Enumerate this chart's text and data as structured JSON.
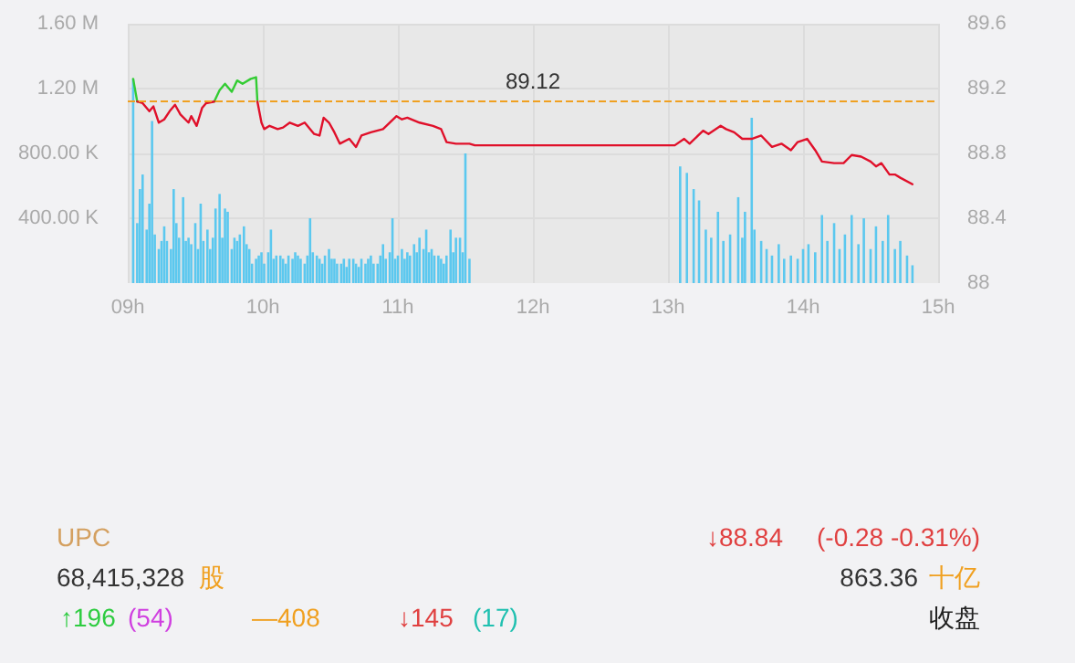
{
  "chart_data": {
    "type": "bar",
    "grid": true,
    "xlim": [
      9,
      15
    ],
    "xticks": [
      {
        "value": 9,
        "label": "09h"
      },
      {
        "value": 10,
        "label": "10h"
      },
      {
        "value": 11,
        "label": "11h"
      },
      {
        "value": 12,
        "label": "12h"
      },
      {
        "value": 13,
        "label": "13h"
      },
      {
        "value": 14,
        "label": "14h"
      },
      {
        "value": 15,
        "label": "15h"
      }
    ],
    "ylim": [
      0,
      1600000
    ],
    "yticks": [
      {
        "value": 400000,
        "label": "400.00 K"
      },
      {
        "value": 800000,
        "label": "800.00 K"
      },
      {
        "value": 1200000,
        "label": "1.20 M"
      },
      {
        "value": 1600000,
        "label": "1.60 M"
      }
    ],
    "y2lim": [
      88,
      89.6
    ],
    "y2ticks": [
      88,
      88.4,
      88.8,
      89.2,
      89.6
    ],
    "ref_lines": [
      {
        "axis": "y2",
        "value": 89.12,
        "label": "89.12",
        "color": "#f0a020",
        "line_style": "dashed"
      }
    ],
    "series": [
      {
        "color": "#5bc8ef",
        "x": [
          9.04,
          9.07,
          9.09,
          9.11,
          9.14,
          9.16,
          9.18,
          9.2,
          9.23,
          9.25,
          9.27,
          9.29,
          9.32,
          9.34,
          9.36,
          9.38,
          9.41,
          9.43,
          9.45,
          9.47,
          9.5,
          9.52,
          9.54,
          9.56,
          9.59,
          9.61,
          9.63,
          9.65,
          9.68,
          9.7,
          9.72,
          9.74,
          9.77,
          9.79,
          9.81,
          9.83,
          9.86,
          9.88,
          9.9,
          9.92,
          9.95,
          9.97,
          9.99,
          10.01,
          10.04,
          10.06,
          10.08,
          10.1,
          10.13,
          10.15,
          10.17,
          10.19,
          10.22,
          10.24,
          10.26,
          10.28,
          10.31,
          10.33,
          10.35,
          10.37,
          10.4,
          10.42,
          10.44,
          10.46,
          10.49,
          10.51,
          10.53,
          10.55,
          10.58,
          10.6,
          10.62,
          10.64,
          10.67,
          10.69,
          10.71,
          10.73,
          10.76,
          10.78,
          10.8,
          10.82,
          10.85,
          10.87,
          10.89,
          10.91,
          10.94,
          10.96,
          10.98,
          11,
          11.03,
          11.05,
          11.07,
          11.09,
          11.12,
          11.14,
          11.16,
          11.19,
          11.21,
          11.23,
          11.25,
          11.27,
          11.3,
          11.32,
          11.34,
          11.36,
          11.39,
          11.41,
          11.43,
          11.46,
          11.48,
          11.5,
          11.53,
          13.09,
          13.14,
          13.19,
          13.23,
          13.28,
          13.32,
          13.37,
          13.41,
          13.46,
          13.52,
          13.55,
          13.57,
          13.62,
          13.64,
          13.69,
          13.73,
          13.77,
          13.82,
          13.86,
          13.91,
          13.96,
          14,
          14.04,
          14.09,
          14.14,
          14.18,
          14.23,
          14.27,
          14.31,
          14.36,
          14.41,
          14.45,
          14.5,
          14.54,
          14.59,
          14.63,
          14.68,
          14.72,
          14.77,
          14.81
        ],
        "values": [
          1260000,
          370000,
          580000,
          670000,
          330000,
          490000,
          1000000,
          300000,
          210000,
          260000,
          350000,
          260000,
          210000,
          580000,
          370000,
          280000,
          530000,
          260000,
          280000,
          240000,
          370000,
          210000,
          490000,
          260000,
          330000,
          210000,
          280000,
          460000,
          550000,
          280000,
          460000,
          440000,
          210000,
          280000,
          260000,
          300000,
          350000,
          240000,
          210000,
          120000,
          150000,
          170000,
          190000,
          120000,
          190000,
          330000,
          150000,
          170000,
          170000,
          150000,
          120000,
          170000,
          150000,
          190000,
          170000,
          150000,
          120000,
          170000,
          400000,
          190000,
          170000,
          150000,
          120000,
          170000,
          210000,
          150000,
          150000,
          120000,
          120000,
          150000,
          100000,
          150000,
          150000,
          120000,
          100000,
          150000,
          120000,
          150000,
          170000,
          120000,
          120000,
          170000,
          240000,
          150000,
          190000,
          400000,
          150000,
          170000,
          210000,
          150000,
          190000,
          170000,
          240000,
          190000,
          280000,
          210000,
          330000,
          190000,
          210000,
          170000,
          170000,
          150000,
          120000,
          170000,
          330000,
          190000,
          280000,
          280000,
          190000,
          800000,
          150000,
          720000,
          680000,
          580000,
          510000,
          330000,
          280000,
          440000,
          260000,
          300000,
          530000,
          280000,
          440000,
          1020000,
          330000,
          260000,
          210000,
          170000,
          240000,
          150000,
          170000,
          150000,
          210000,
          240000,
          190000,
          420000,
          260000,
          370000,
          210000,
          300000,
          420000,
          240000,
          400000,
          210000,
          350000,
          260000,
          420000,
          210000,
          260000,
          170000,
          110000
        ]
      },
      {
        "type": "line",
        "axis": "y2",
        "color": "#33cc33",
        "x": [
          9.04,
          9.07,
          9.3,
          9.64,
          9.68,
          9.72,
          9.77,
          9.81,
          9.85,
          9.91,
          9.95,
          9.96
        ],
        "values": [
          89.26,
          89.12,
          null,
          89.12,
          89.19,
          89.23,
          89.18,
          89.25,
          89.23,
          89.26,
          89.27,
          89.12
        ]
      },
      {
        "type": "line",
        "axis": "y2",
        "color": "#e0102a",
        "x": [
          9.07,
          9.11,
          9.16,
          9.19,
          9.23,
          9.27,
          9.31,
          9.35,
          9.39,
          9.45,
          9.47,
          9.51,
          9.55,
          9.58,
          9.64,
          9.8,
          9.96,
          9.99,
          10.01,
          10.05,
          10.11,
          10.15,
          10.2,
          10.26,
          10.31,
          10.38,
          10.42,
          10.45,
          10.49,
          10.53,
          10.57,
          10.64,
          10.69,
          10.73,
          10.8,
          10.89,
          10.99,
          11.03,
          11.07,
          11.16,
          11.26,
          11.32,
          11.36,
          11.43,
          11.53,
          11.57,
          13.05,
          13.12,
          13.16,
          13.26,
          13.3,
          13.39,
          13.43,
          13.49,
          13.55,
          13.62,
          13.69,
          13.77,
          13.84,
          13.91,
          13.96,
          14.03,
          14.09,
          14.14,
          14.23,
          14.3,
          14.36,
          14.43,
          14.5,
          14.54,
          14.58,
          14.64,
          14.68,
          14.72,
          14.81
        ],
        "values": [
          89.12,
          89.11,
          89.06,
          89.09,
          88.99,
          89.01,
          89.06,
          89.1,
          89.04,
          88.99,
          89.03,
          88.97,
          89.08,
          89.11,
          89.12,
          null,
          89.12,
          88.99,
          88.95,
          88.97,
          88.95,
          88.96,
          88.99,
          88.97,
          88.99,
          88.92,
          88.91,
          89.02,
          88.99,
          88.93,
          88.86,
          88.89,
          88.84,
          88.91,
          88.93,
          88.95,
          89.03,
          89.01,
          89.02,
          88.99,
          88.97,
          88.95,
          88.87,
          88.86,
          88.86,
          88.85,
          88.85,
          88.89,
          88.86,
          88.94,
          88.92,
          88.97,
          88.95,
          88.93,
          88.89,
          88.89,
          88.91,
          88.84,
          88.86,
          88.82,
          88.87,
          88.89,
          88.82,
          88.75,
          88.74,
          88.74,
          88.79,
          88.78,
          88.75,
          88.72,
          88.74,
          88.67,
          88.67,
          88.65,
          88.61
        ]
      }
    ],
    "annotations": [
      "UPC",
      "68,415,328",
      "股",
      "↓88.84",
      "(-0.28  -0.31%)",
      "863.36",
      "十亿",
      "↑196",
      "(54)",
      "—408",
      "↓145",
      "(17)",
      "收盘"
    ]
  }
}
